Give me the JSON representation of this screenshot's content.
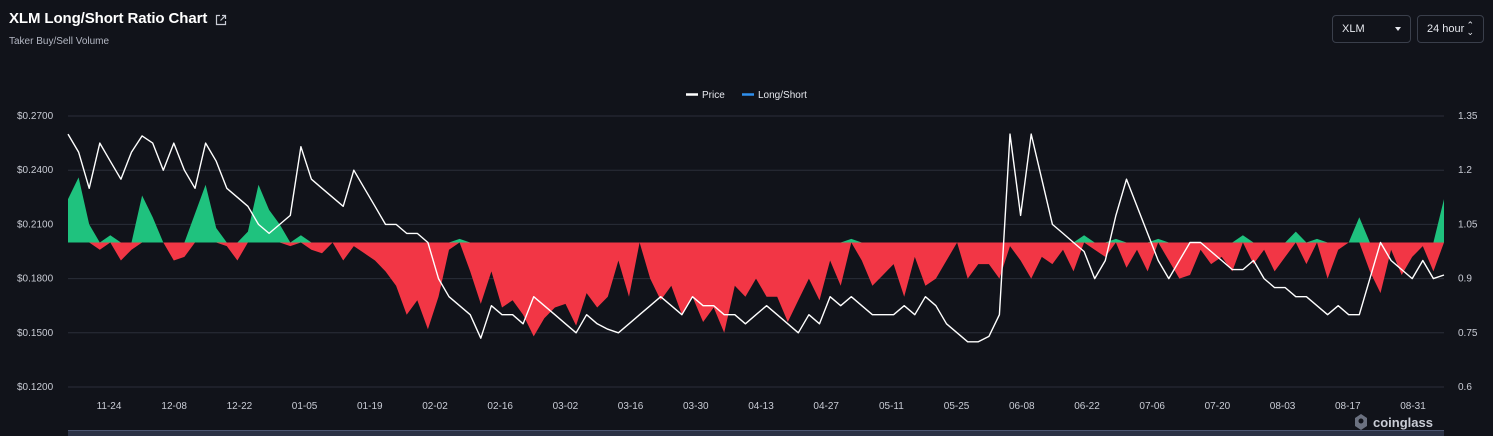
{
  "header": {
    "title": "XLM Long/Short Ratio Chart",
    "subtitle": "Taker Buy/Sell Volume",
    "coin_select": "XLM",
    "period_select": "24 hour"
  },
  "watermark": "coinglass",
  "colors": {
    "price": "#ffffff",
    "long_short": "#2f90ee",
    "above": "#1fc27e",
    "below": "#f23645",
    "background": "#11131a"
  },
  "chart_data": {
    "type": "line+area",
    "legend": [
      "Price",
      "Long/Short"
    ],
    "legend_position": "top-center",
    "grid": "horizontal",
    "x_tick_labels": [
      "11-24",
      "12-08",
      "12-22",
      "01-05",
      "01-19",
      "02-02",
      "02-16",
      "03-02",
      "03-16",
      "03-30",
      "04-13",
      "04-27",
      "05-11",
      "05-25",
      "06-08",
      "06-22",
      "07-06",
      "07-20",
      "08-03",
      "08-17",
      "08-31"
    ],
    "y_left": {
      "ticks": [
        "$0.2700",
        "$0.2400",
        "$0.2100",
        "$0.1800",
        "$0.1500",
        "$0.1200"
      ],
      "range": [
        0.12,
        0.27
      ]
    },
    "y_right": {
      "ticks": [
        "1.35",
        "1.2",
        "1.05",
        "0.9",
        "0.75",
        "0.6"
      ],
      "range": [
        0.6,
        1.35
      ],
      "baseline": 1.0
    },
    "price": [
      0.26,
      0.25,
      0.23,
      0.255,
      0.245,
      0.235,
      0.25,
      0.259,
      0.255,
      0.24,
      0.255,
      0.24,
      0.23,
      0.255,
      0.245,
      0.23,
      0.225,
      0.22,
      0.21,
      0.205,
      0.21,
      0.215,
      0.253,
      0.235,
      0.23,
      0.225,
      0.22,
      0.24,
      0.23,
      0.22,
      0.21,
      0.21,
      0.205,
      0.205,
      0.2,
      0.18,
      0.17,
      0.165,
      0.16,
      0.147,
      0.165,
      0.16,
      0.16,
      0.155,
      0.17,
      0.165,
      0.16,
      0.155,
      0.15,
      0.16,
      0.155,
      0.152,
      0.15,
      0.155,
      0.16,
      0.165,
      0.17,
      0.165,
      0.16,
      0.17,
      0.165,
      0.165,
      0.16,
      0.16,
      0.155,
      0.16,
      0.165,
      0.16,
      0.155,
      0.15,
      0.16,
      0.155,
      0.17,
      0.165,
      0.17,
      0.165,
      0.16,
      0.16,
      0.16,
      0.165,
      0.16,
      0.17,
      0.165,
      0.155,
      0.15,
      0.145,
      0.145,
      0.148,
      0.16,
      0.26,
      0.215,
      0.26,
      0.235,
      0.21,
      0.205,
      0.2,
      0.195,
      0.18,
      0.19,
      0.215,
      0.235,
      0.22,
      0.205,
      0.19,
      0.18,
      0.19,
      0.2,
      0.2,
      0.195,
      0.19,
      0.185,
      0.185,
      0.19,
      0.18,
      0.175,
      0.175,
      0.17,
      0.17,
      0.165,
      0.16,
      0.165,
      0.16,
      0.16,
      0.18,
      0.2,
      0.19,
      0.185,
      0.18,
      0.19,
      0.18,
      0.182
    ],
    "long_short": [
      1.12,
      1.18,
      1.05,
      0.98,
      1.02,
      0.95,
      0.98,
      1.13,
      1.07,
      1.0,
      0.95,
      0.96,
      1.08,
      1.16,
      1.04,
      0.99,
      0.95,
      1.03,
      1.16,
      1.09,
      1.05,
      0.99,
      1.02,
      0.98,
      0.97,
      1.0,
      0.95,
      0.99,
      0.97,
      0.95,
      0.92,
      0.88,
      0.8,
      0.84,
      0.76,
      0.85,
      0.98,
      1.01,
      0.92,
      0.83,
      0.92,
      0.82,
      0.84,
      0.8,
      0.74,
      0.79,
      0.82,
      0.83,
      0.77,
      0.86,
      0.82,
      0.85,
      0.95,
      0.85,
      1.0,
      0.9,
      0.84,
      0.88,
      0.8,
      0.85,
      0.78,
      0.82,
      0.75,
      0.88,
      0.85,
      0.9,
      0.85,
      0.85,
      0.78,
      0.84,
      0.9,
      0.84,
      0.95,
      0.88,
      1.01,
      0.95,
      0.88,
      0.91,
      0.94,
      0.85,
      0.96,
      0.88,
      0.9,
      0.95,
      1.0,
      0.9,
      0.94,
      0.94,
      0.9,
      0.99,
      0.95,
      0.9,
      0.96,
      0.94,
      0.98,
      0.92,
      1.02,
      0.98,
      0.96,
      1.01,
      0.93,
      0.98,
      0.92,
      1.01,
      0.95,
      0.9,
      0.91,
      0.98,
      0.94,
      0.96,
      0.92,
      1.02,
      0.94,
      0.98,
      0.92,
      0.96,
      1.03,
      0.94,
      1.01,
      0.9,
      0.98,
      1.0,
      1.07,
      0.92,
      0.86,
      0.98,
      0.91,
      0.96,
      0.99,
      0.92,
      1.12
    ]
  }
}
